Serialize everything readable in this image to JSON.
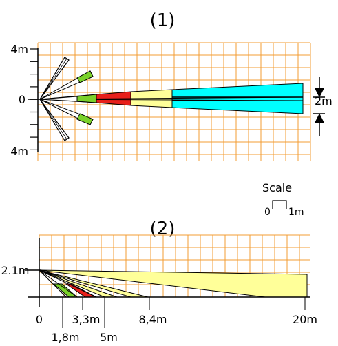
{
  "colors": {
    "grid": "#f39c33",
    "axis": "#000000",
    "zone_red": "#e8201a",
    "zone_yellow": "#ffff99",
    "zone_cyan": "#00ffff",
    "zone_green": "#7ad12a",
    "zone_white": "#ffffff"
  },
  "top_view": {
    "label": "(1)",
    "y_top_label": "4m",
    "y_zero_label": "0",
    "y_bottom_label": "4m",
    "width_label": "2m"
  },
  "scale": {
    "title": "Scale",
    "start": "0",
    "end": "1m"
  },
  "side_view": {
    "label": "(2)",
    "height_label": "2.1m",
    "x_labels": {
      "zero": "0",
      "d1": "1,8m",
      "d2": "3,3m",
      "d3": "5m",
      "d4": "8,4m",
      "d5": "20m"
    }
  }
}
